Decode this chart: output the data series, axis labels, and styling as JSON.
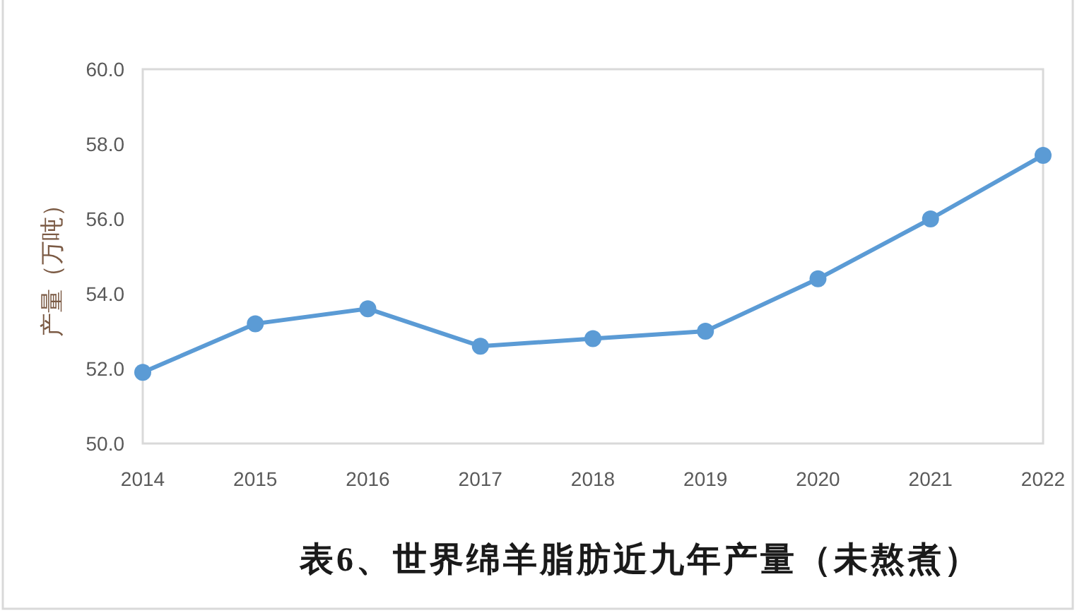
{
  "chart_data": {
    "type": "line",
    "title": "表6、世界绵羊脂肪近九年产量（未熬煮）",
    "ylabel": "产量（万吨）",
    "categories": [
      "2014",
      "2015",
      "2016",
      "2017",
      "2018",
      "2019",
      "2020",
      "2021",
      "2022"
    ],
    "series": [
      {
        "color": "#5b9bd5",
        "values": [
          51.9,
          53.2,
          53.6,
          52.6,
          52.8,
          53.0,
          54.4,
          56.0,
          57.7
        ]
      }
    ],
    "ylim": [
      50,
      60
    ],
    "yticks": [
      {
        "value": 50,
        "label": "50.0"
      },
      {
        "value": 52,
        "label": "52.0"
      },
      {
        "value": 54,
        "label": "54.0"
      },
      {
        "value": 56,
        "label": "56.0"
      },
      {
        "value": 58,
        "label": "58.0"
      },
      {
        "value": 60,
        "label": "60.0"
      }
    ],
    "marker": "circle",
    "line_style": "solid"
  }
}
